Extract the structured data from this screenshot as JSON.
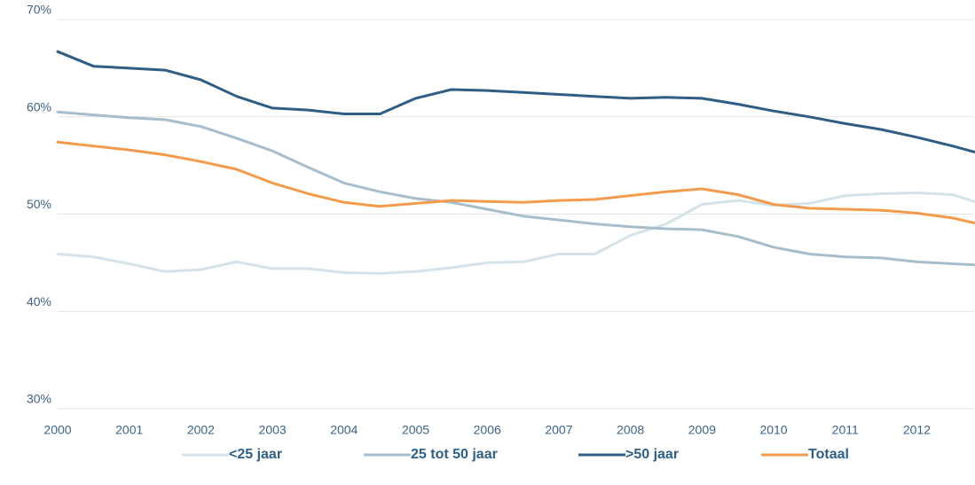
{
  "chart_data": {
    "type": "line",
    "x": [
      2000,
      2000.5,
      2001,
      2001.5,
      2002,
      2002.5,
      2003,
      2003.5,
      2004,
      2004.5,
      2005,
      2005.5,
      2006,
      2006.5,
      2007,
      2007.5,
      2008,
      2008.5,
      2009,
      2009.5,
      2010,
      2010.5,
      2011,
      2011.5,
      2012,
      2012.5,
      2012.8
    ],
    "xlim": [
      2000,
      2012.8
    ],
    "xticks": [
      2000,
      2001,
      2002,
      2003,
      2004,
      2005,
      2006,
      2007,
      2008,
      2009,
      2010,
      2011,
      2012
    ],
    "ylim": [
      30,
      70
    ],
    "yticks": [
      {
        "value": 30,
        "label": "30%"
      },
      {
        "value": 40,
        "label": "40%"
      },
      {
        "value": 50,
        "label": "50%"
      },
      {
        "value": 60,
        "label": "60%"
      },
      {
        "value": 70,
        "label": "70%"
      }
    ],
    "grid": true,
    "legend": "bottom",
    "series": [
      {
        "name": "<25 jaar",
        "color": "#d4e3ea",
        "values": [
          45.9,
          45.6,
          44.9,
          44.1,
          44.3,
          45.1,
          44.4,
          44.4,
          44.0,
          43.9,
          44.1,
          44.5,
          45.0,
          45.1,
          45.9,
          45.9,
          47.8,
          49.0,
          51.0,
          51.4,
          50.9,
          51.1,
          51.9,
          52.1,
          52.2,
          52.0,
          51.3
        ]
      },
      {
        "name": "25 tot 50 jaar",
        "color": "#a7bdcc",
        "values": [
          60.5,
          60.2,
          59.9,
          59.7,
          59.0,
          57.8,
          56.5,
          54.8,
          53.2,
          52.3,
          51.6,
          51.2,
          50.5,
          49.8,
          49.4,
          49.0,
          48.7,
          48.5,
          48.4,
          47.7,
          46.6,
          45.9,
          45.6,
          45.5,
          45.1,
          44.9,
          44.8
        ]
      },
      {
        "name": ">50 jaar",
        "color": "#2f5d85",
        "values": [
          66.7,
          65.2,
          65.0,
          64.8,
          63.8,
          62.1,
          60.9,
          60.7,
          60.3,
          60.3,
          61.9,
          62.8,
          62.7,
          62.5,
          62.3,
          62.1,
          61.9,
          62.0,
          61.9,
          61.3,
          60.6,
          60.0,
          59.3,
          58.7,
          57.9,
          57.0,
          56.4
        ]
      },
      {
        "name": "Totaal",
        "color": "#f29b4c",
        "values": [
          57.4,
          57.0,
          56.6,
          56.1,
          55.4,
          54.6,
          53.2,
          52.1,
          51.2,
          50.8,
          51.1,
          51.4,
          51.3,
          51.2,
          51.4,
          51.5,
          51.9,
          52.3,
          52.6,
          52.0,
          51.0,
          50.6,
          50.5,
          50.4,
          50.1,
          49.6,
          49.1
        ]
      }
    ]
  }
}
